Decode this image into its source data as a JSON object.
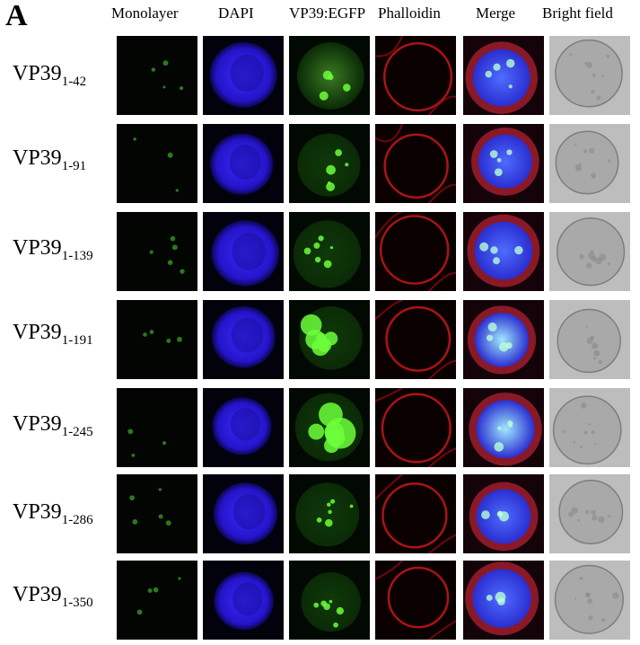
{
  "panel_letter": "A",
  "columns": [
    "Monolayer",
    "DAPI",
    "VP39:EGFP",
    "Phalloidin",
    "Merge",
    "Bright field"
  ],
  "rows": [
    {
      "base": "VP39",
      "sub": "1-42"
    },
    {
      "base": "VP39",
      "sub": "1-91"
    },
    {
      "base": "VP39",
      "sub": "1-139"
    },
    {
      "base": "VP39",
      "sub": "1-191"
    },
    {
      "base": "VP39",
      "sub": "1-245"
    },
    {
      "base": "VP39",
      "sub": "1-286"
    },
    {
      "base": "VP39",
      "sub": "1-350"
    }
  ]
}
